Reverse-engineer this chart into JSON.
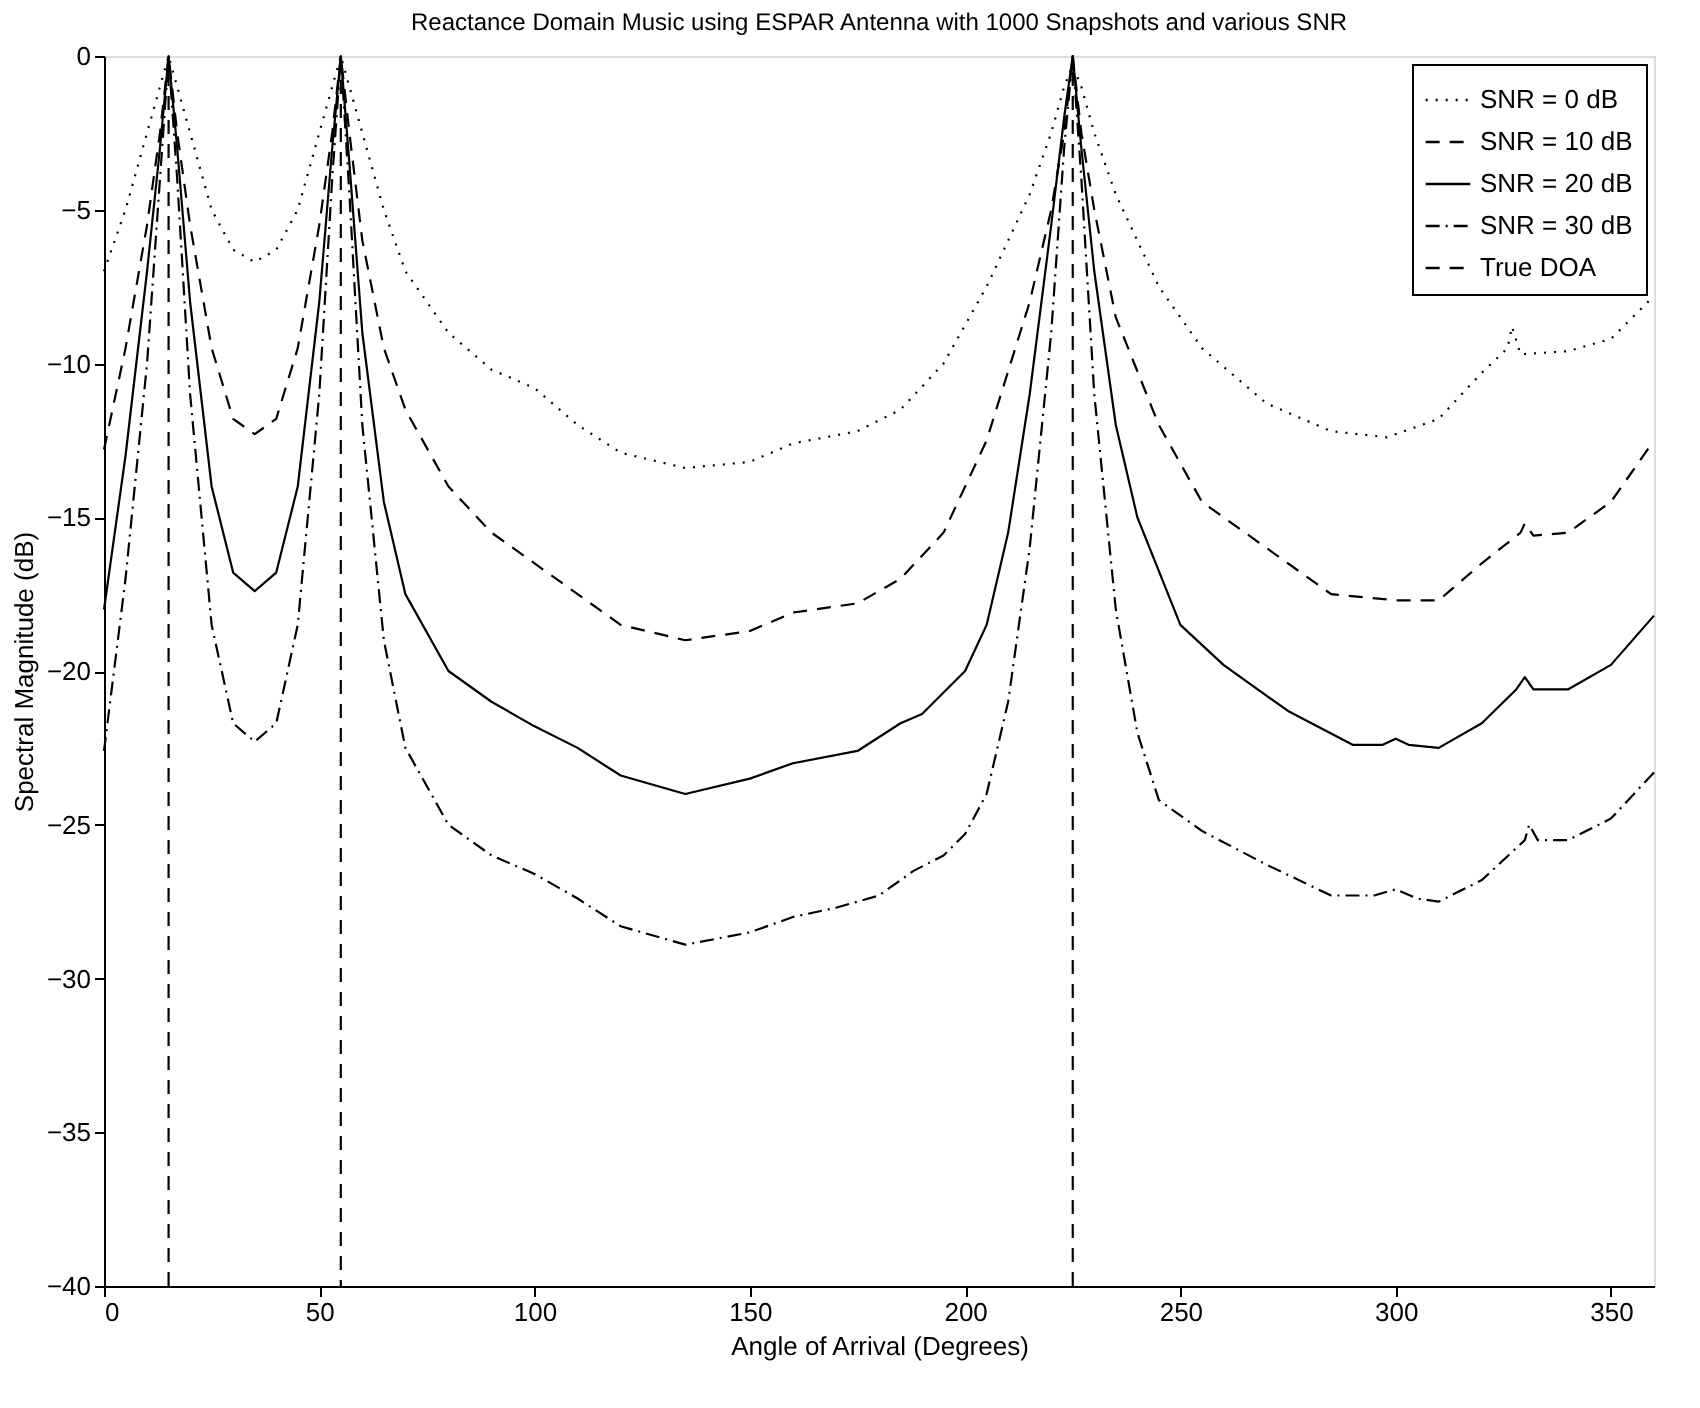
{
  "chart_data": {
    "type": "line",
    "title": "Reactance Domain Music using ESPAR Antenna with 1000 Snapshots and various SNR",
    "xlabel": "Angle of Arrival (Degrees)",
    "ylabel": "Spectral Magnitude (dB)",
    "xlim": [
      0,
      360
    ],
    "xticks": [
      0,
      50,
      100,
      150,
      200,
      250,
      300,
      350
    ],
    "ylim": [
      -40,
      0
    ],
    "yticks": [
      -40,
      -35,
      -30,
      -25,
      -20,
      -15,
      -10,
      -5,
      0
    ],
    "grid": false,
    "legend": "top right",
    "marker": "none",
    "series": [
      {
        "name": "SNR = 0 dB",
        "color": "#000000",
        "line_style": "dotted",
        "x": [
          0,
          5,
          10,
          13,
          15,
          17,
          20,
          25,
          30,
          35,
          40,
          45,
          50,
          53,
          55,
          57,
          60,
          65,
          70,
          80,
          90,
          100,
          110,
          120,
          135,
          150,
          160,
          175,
          185,
          195,
          205,
          215,
          220,
          223,
          225,
          227,
          230,
          235,
          245,
          255,
          270,
          285,
          298,
          310,
          320,
          326,
          327,
          329,
          340,
          350,
          360
        ],
        "values": [
          -7,
          -5,
          -2.5,
          -1,
          0,
          -1,
          -2.5,
          -5,
          -6.3,
          -6.7,
          -6.3,
          -5,
          -2.5,
          -1,
          0,
          -1,
          -2.5,
          -5,
          -7,
          -9,
          -10.2,
          -10.8,
          -12,
          -12.9,
          -13.4,
          -13.2,
          -12.6,
          -12.2,
          -11.5,
          -10,
          -7.5,
          -4.5,
          -2.5,
          -1,
          -0.3,
          -1,
          -2.5,
          -4.5,
          -7.5,
          -9.5,
          -11.3,
          -12.2,
          -12.4,
          -11.8,
          -10.3,
          -9.5,
          -8.8,
          -9.7,
          -9.6,
          -9.2,
          -7.8
        ]
      },
      {
        "name": "SNR = 10 dB",
        "color": "#000000",
        "line_style": "dashed",
        "x": [
          0,
          5,
          10,
          13,
          15,
          17,
          20,
          25,
          30,
          35,
          40,
          45,
          50,
          53,
          55,
          57,
          60,
          65,
          70,
          80,
          90,
          100,
          110,
          120,
          135,
          150,
          160,
          175,
          185,
          195,
          205,
          215,
          220,
          223,
          225,
          227,
          230,
          235,
          245,
          255,
          270,
          285,
          300,
          310,
          320,
          329,
          330,
          332,
          340,
          350,
          360
        ],
        "values": [
          -12.8,
          -9.5,
          -5.5,
          -2.5,
          0,
          -2.5,
          -5.5,
          -9.5,
          -11.8,
          -12.3,
          -11.8,
          -9.5,
          -5.5,
          -2.5,
          0,
          -2.5,
          -6,
          -9.5,
          -11.5,
          -14,
          -15.5,
          -16.5,
          -17.5,
          -18.5,
          -19,
          -18.7,
          -18.1,
          -17.8,
          -17,
          -15.5,
          -12.5,
          -8,
          -5,
          -2.5,
          0,
          -2.5,
          -5,
          -8.5,
          -12,
          -14.5,
          -16,
          -17.5,
          -17.7,
          -17.7,
          -16.5,
          -15.5,
          -15.2,
          -15.6,
          -15.5,
          -14.5,
          -12.5
        ]
      },
      {
        "name": "SNR = 20 dB",
        "color": "#000000",
        "line_style": "solid",
        "x": [
          0,
          5,
          10,
          13,
          15,
          17,
          20,
          25,
          30,
          35,
          40,
          45,
          50,
          53,
          55,
          57,
          60,
          65,
          70,
          80,
          90,
          100,
          110,
          120,
          135,
          150,
          160,
          175,
          185,
          190,
          200,
          205,
          210,
          215,
          220,
          223,
          225,
          227,
          230,
          235,
          240,
          250,
          260,
          275,
          290,
          297,
          300,
          303,
          310,
          320,
          328,
          330,
          332,
          340,
          350,
          360
        ],
        "values": [
          -18,
          -13,
          -7,
          -3,
          0,
          -3,
          -8,
          -14,
          -16.8,
          -17.4,
          -16.8,
          -14,
          -8,
          -3,
          0,
          -3.5,
          -9,
          -14.5,
          -17.5,
          -20,
          -21,
          -21.8,
          -22.5,
          -23.4,
          -24,
          -23.5,
          -23,
          -22.6,
          -21.7,
          -21.4,
          -20,
          -18.5,
          -15.5,
          -11,
          -5.5,
          -2,
          0,
          -3,
          -7,
          -12,
          -15,
          -18.5,
          -19.8,
          -21.3,
          -22.4,
          -22.4,
          -22.2,
          -22.4,
          -22.5,
          -21.7,
          -20.6,
          -20.2,
          -20.6,
          -20.6,
          -19.8,
          -18.2
        ]
      },
      {
        "name": "SNR = 30 dB",
        "color": "#000000",
        "line_style": "dashdot",
        "x": [
          0,
          5,
          10,
          13,
          15,
          17,
          20,
          25,
          30,
          35,
          40,
          45,
          50,
          53,
          55,
          57,
          60,
          65,
          70,
          80,
          90,
          100,
          110,
          120,
          135,
          150,
          160,
          170,
          180,
          188,
          195,
          200,
          205,
          210,
          215,
          220,
          223,
          225,
          227,
          230,
          235,
          240,
          245,
          255,
          270,
          285,
          295,
          300,
          305,
          310,
          320,
          330,
          331,
          333,
          340,
          350,
          360
        ],
        "values": [
          -22.6,
          -17,
          -10,
          -4,
          0,
          -4,
          -11,
          -18.5,
          -21.7,
          -22.3,
          -21.7,
          -18.5,
          -11,
          -4,
          0,
          -4.5,
          -12,
          -19,
          -22.5,
          -25,
          -26,
          -26.6,
          -27.4,
          -28.3,
          -28.9,
          -28.5,
          -28,
          -27.7,
          -27.3,
          -26.5,
          -26,
          -25.3,
          -24,
          -21,
          -16,
          -9,
          -3,
          0,
          -4,
          -11,
          -18,
          -22,
          -24.2,
          -25.2,
          -26.3,
          -27.3,
          -27.3,
          -27.1,
          -27.4,
          -27.5,
          -26.8,
          -25.5,
          -25,
          -25.5,
          -25.5,
          -24.8,
          -23.3
        ]
      },
      {
        "name": "True DOA",
        "color": "#000000",
        "line_style": "dashed",
        "x": [
          15,
          15,
          null,
          55,
          55,
          null,
          225,
          225
        ],
        "values": [
          -40,
          0,
          null,
          0,
          -40,
          null,
          -40,
          0
        ]
      }
    ]
  }
}
